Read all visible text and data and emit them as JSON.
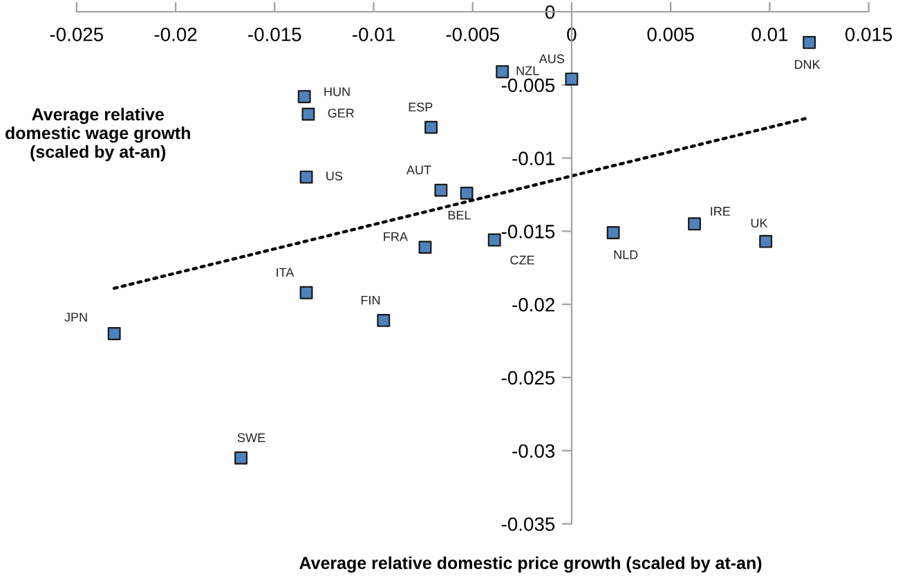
{
  "chart_data": {
    "type": "scatter",
    "xlabel": "Average relative domestic price growth (scaled by at-an)",
    "ylabel": "Average relative domestic wage growth (scaled by at-an)",
    "xlim": [
      -0.025,
      0.015
    ],
    "xticks": [
      -0.025,
      -0.02,
      -0.015,
      -0.01,
      -0.005,
      0,
      0.005,
      0.01,
      0.015
    ],
    "ylim": [
      -0.035,
      0
    ],
    "yticks": [
      -0.035,
      -0.03,
      -0.025,
      -0.02,
      -0.015,
      -0.01,
      -0.005,
      0
    ],
    "grid": false,
    "legend": false,
    "series": [
      {
        "color": "#4f81bd",
        "marker": "square",
        "x": [
          0.012,
          -0.0035,
          0.0,
          -0.0135,
          -0.0133,
          -0.0071,
          -0.0134,
          -0.0066,
          -0.0053,
          -0.0074,
          -0.0039,
          0.0021,
          0.0062,
          0.0098,
          -0.0134,
          -0.0095,
          -0.0231,
          -0.0167
        ],
        "values": [
          -0.0021,
          -0.0041,
          -0.0046,
          -0.0058,
          -0.007,
          -0.0079,
          -0.0113,
          -0.0122,
          -0.0124,
          -0.0161,
          -0.0156,
          -0.0151,
          -0.0145,
          -0.0157,
          -0.0192,
          -0.0211,
          -0.022,
          -0.0305
        ]
      },
      {
        "type": "line",
        "color": "#000000",
        "line_style": "dotted",
        "marker": "none",
        "x": [
          -0.0231,
          0.0118
        ],
        "values": [
          -0.0189,
          -0.0073
        ]
      }
    ],
    "annotations": [
      {
        "text": "DNK",
        "x": 0.012,
        "y": -0.0021
      },
      {
        "text": "NZL",
        "x": -0.0035,
        "y": -0.0041
      },
      {
        "text": "AUS",
        "x": 0.0,
        "y": -0.0046
      },
      {
        "text": "HUN",
        "x": -0.0135,
        "y": -0.0058
      },
      {
        "text": "GER",
        "x": -0.0133,
        "y": -0.007
      },
      {
        "text": "ESP",
        "x": -0.0071,
        "y": -0.0079
      },
      {
        "text": "US",
        "x": -0.0134,
        "y": -0.0113
      },
      {
        "text": "AUT",
        "x": -0.0066,
        "y": -0.0122
      },
      {
        "text": "BEL",
        "x": -0.0053,
        "y": -0.0124
      },
      {
        "text": "FRA",
        "x": -0.0074,
        "y": -0.0161
      },
      {
        "text": "CZE",
        "x": -0.0039,
        "y": -0.0156
      },
      {
        "text": "NLD",
        "x": 0.0021,
        "y": -0.0151
      },
      {
        "text": "IRE",
        "x": 0.0062,
        "y": -0.0145
      },
      {
        "text": "UK",
        "x": 0.0098,
        "y": -0.0157
      },
      {
        "text": "ITA",
        "x": -0.0134,
        "y": -0.0192
      },
      {
        "text": "FIN",
        "x": -0.0095,
        "y": -0.0211
      },
      {
        "text": "JPN",
        "x": -0.0231,
        "y": -0.022
      },
      {
        "text": "SWE",
        "x": -0.0167,
        "y": -0.0305
      }
    ]
  }
}
